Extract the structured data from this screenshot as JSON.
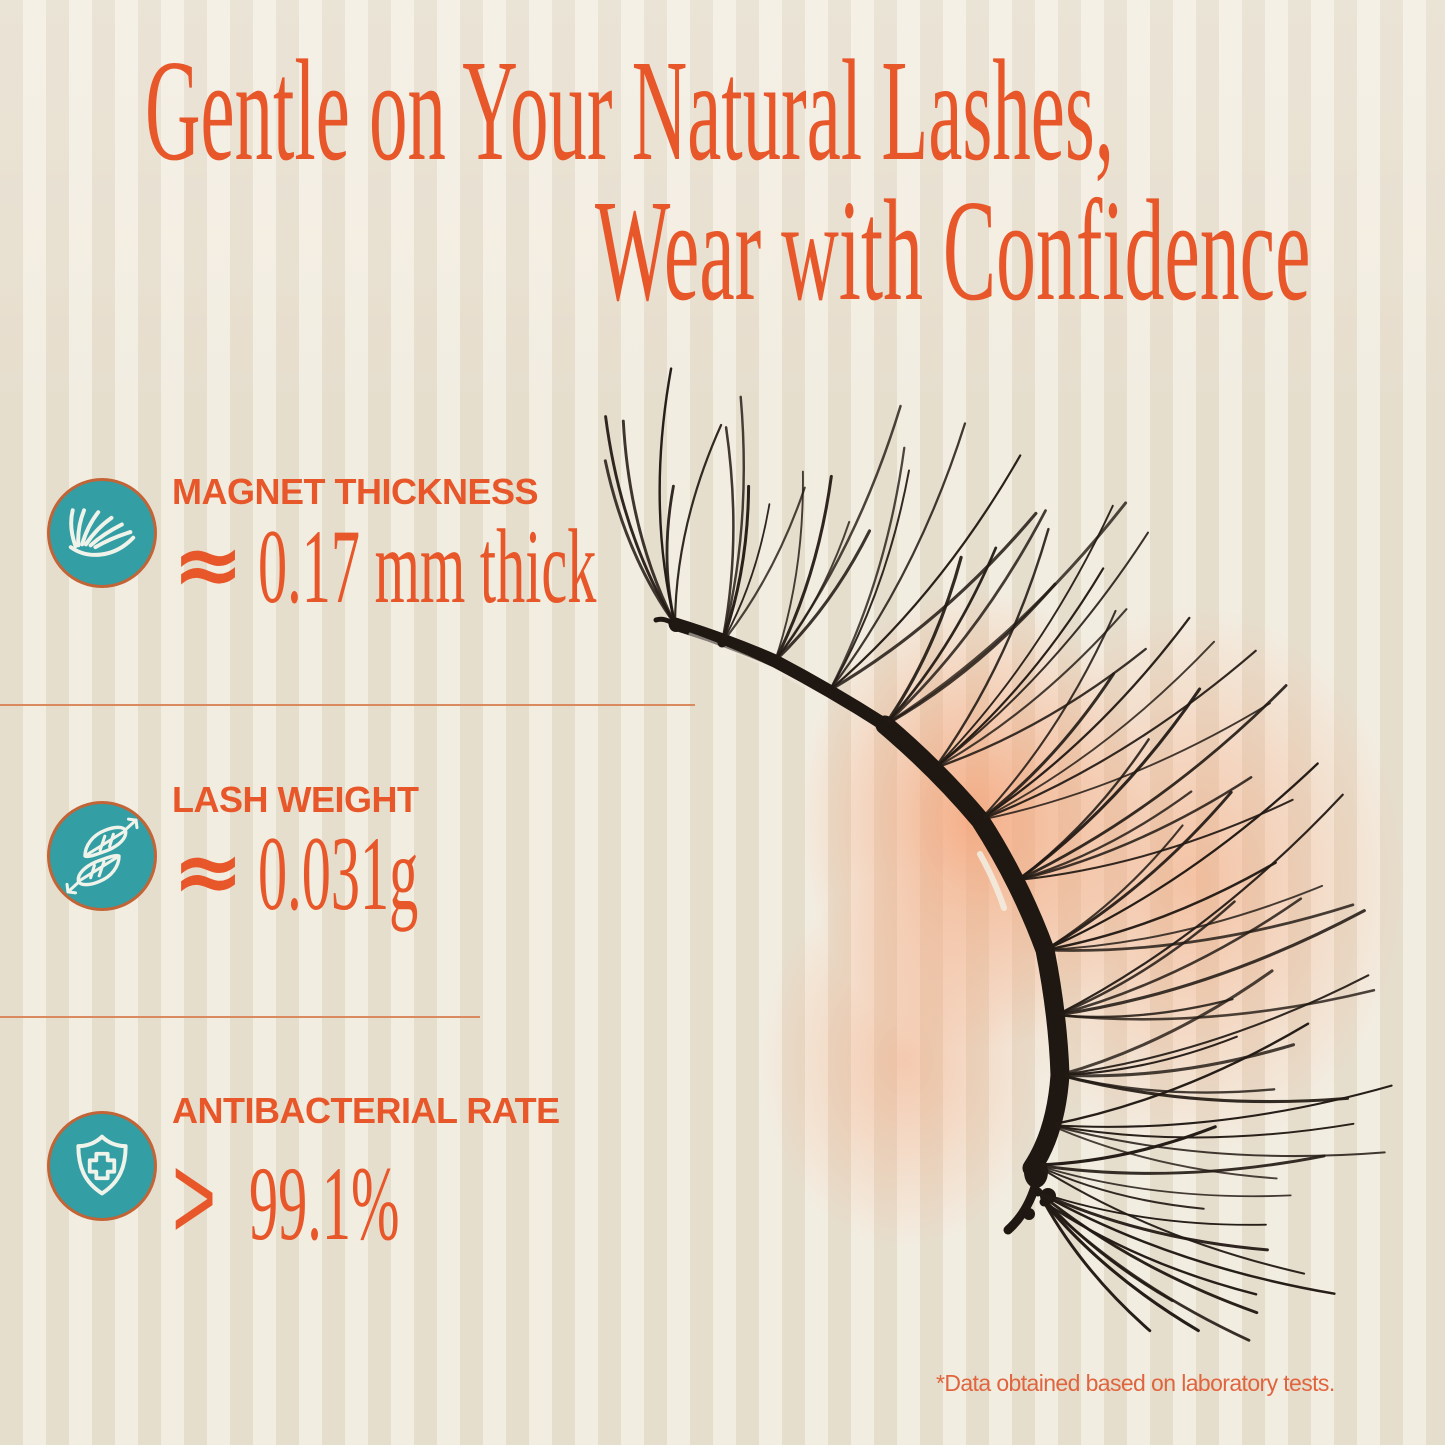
{
  "title": {
    "line1": "Gentle on Your Natural Lashes,",
    "line2": "Wear with Confidence"
  },
  "features": [
    {
      "icon": "lash-icon",
      "label": "MAGNET THICKNESS",
      "prefix": "≈",
      "value": "0.17 mm thick"
    },
    {
      "icon": "feathers-icon",
      "label": "LASH WEIGHT",
      "prefix": "≈",
      "value": "0.031g"
    },
    {
      "icon": "shield-cross-icon",
      "label": "ANTIBACTERIAL RATE",
      "prefix": ">",
      "value": "99.1%"
    }
  ],
  "footnote": "*Data obtained based on laboratory tests.",
  "colors": {
    "accent_orange": "#E7572A",
    "teal": "#339EA4",
    "badge_ring": "#C36436",
    "background": "#EFE8DA",
    "divider": "#DB8A5F",
    "glow_peach": "#F6A378",
    "footnote_orange": "#E0653F",
    "lash_black": "#221A14"
  }
}
